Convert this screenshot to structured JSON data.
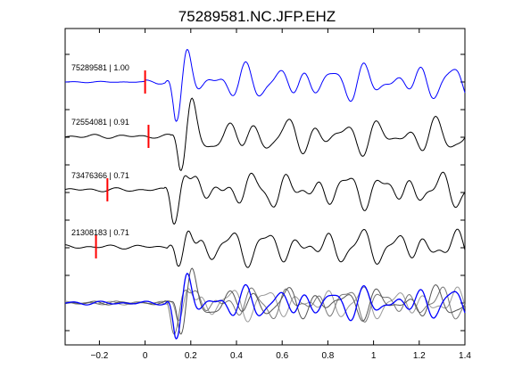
{
  "chart_data": {
    "type": "line",
    "title": "75289581.NC.JFP.EHZ",
    "xlabel": "",
    "ylabel": "",
    "xlim": [
      -0.35,
      1.4
    ],
    "x_ticks": [
      -0.2,
      0,
      0.2,
      0.4,
      0.6,
      0.8,
      1,
      1.2,
      1.4
    ],
    "x_tick_labels": [
      "−0.2",
      "0",
      "0.2",
      "0.4",
      "0.6",
      "0.8",
      "1",
      "1.2",
      "1.4"
    ],
    "grid": false,
    "legend": "none",
    "traces": [
      {
        "label": "75289581 | 1.00",
        "pick_time": 0.0,
        "color": "#0000ff",
        "seed": 1,
        "phase_shift": 0.0
      },
      {
        "label": "72554081 | 0.91",
        "pick_time": 0.015,
        "color": "#000000",
        "seed": 2,
        "phase_shift": 0.02
      },
      {
        "label": "73476366 | 0.71",
        "pick_time": -0.165,
        "color": "#000000",
        "seed": 3,
        "phase_shift": -0.01
      },
      {
        "label": "21308183 | 0.71",
        "pick_time": -0.215,
        "color": "#000000",
        "seed": 4,
        "phase_shift": 0.01
      }
    ],
    "stack": {
      "colors": [
        "#0000ff",
        "#555555",
        "#777777",
        "#999999"
      ]
    },
    "pick_color": "#ff0000"
  }
}
